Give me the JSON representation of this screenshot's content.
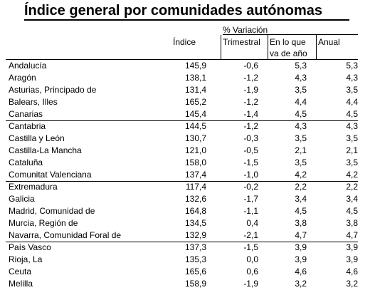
{
  "title": "Índice general por comunidades autónomas",
  "headers": {
    "indice": "Índice",
    "variacion": "% Variación",
    "trimestral": "Trimestral",
    "en_lo_que_1": "En lo que",
    "en_lo_que_2": "va de año",
    "anual": "Anual"
  },
  "rows": [
    {
      "name": "Andalucía",
      "indice": "145,9",
      "trimestral": "-0,6",
      "en_lo_que": "5,3",
      "anual": "5,3"
    },
    {
      "name": "Aragón",
      "indice": "138,1",
      "trimestral": "-1,2",
      "en_lo_que": "4,3",
      "anual": "4,3"
    },
    {
      "name": "Asturias, Principado de",
      "indice": "131,4",
      "trimestral": "-1,9",
      "en_lo_que": "3,5",
      "anual": "3,5"
    },
    {
      "name": "Balears, Illes",
      "indice": "165,2",
      "trimestral": "-1,2",
      "en_lo_que": "4,4",
      "anual": "4,4"
    },
    {
      "name": "Canarias",
      "indice": "145,4",
      "trimestral": "-1,4",
      "en_lo_que": "4,5",
      "anual": "4,5"
    },
    {
      "name": "Cantabria",
      "indice": "144,5",
      "trimestral": "-1,2",
      "en_lo_que": "4,3",
      "anual": "4,3"
    },
    {
      "name": "Castilla y León",
      "indice": "130,7",
      "trimestral": "-0,3",
      "en_lo_que": "3,5",
      "anual": "3,5"
    },
    {
      "name": "Castilla-La Mancha",
      "indice": "121,0",
      "trimestral": "-0,5",
      "en_lo_que": "2,1",
      "anual": "2,1"
    },
    {
      "name": "Cataluña",
      "indice": "158,0",
      "trimestral": "-1,5",
      "en_lo_que": "3,5",
      "anual": "3,5"
    },
    {
      "name": "Comunitat Valenciana",
      "indice": "137,4",
      "trimestral": "-1,0",
      "en_lo_que": "4,2",
      "anual": "4,2"
    },
    {
      "name": "Extremadura",
      "indice": "117,4",
      "trimestral": "-0,2",
      "en_lo_que": "2,2",
      "anual": "2,2"
    },
    {
      "name": "Galicia",
      "indice": "132,6",
      "trimestral": "-1,7",
      "en_lo_que": "3,4",
      "anual": "3,4"
    },
    {
      "name": "Madrid, Comunidad de",
      "indice": "164,8",
      "trimestral": "-1,1",
      "en_lo_que": "4,5",
      "anual": "4,5"
    },
    {
      "name": "Murcia, Región de",
      "indice": "134,5",
      "trimestral": "0,4",
      "en_lo_que": "3,8",
      "anual": "3,8"
    },
    {
      "name": "Navarra, Comunidad Foral de",
      "indice": "132,9",
      "trimestral": "-2,1",
      "en_lo_que": "4,7",
      "anual": "4,7"
    },
    {
      "name": "País Vasco",
      "indice": "137,3",
      "trimestral": "-1,5",
      "en_lo_que": "3,9",
      "anual": "3,9"
    },
    {
      "name": "Rioja, La",
      "indice": "135,3",
      "trimestral": "0,0",
      "en_lo_que": "3,9",
      "anual": "3,9"
    },
    {
      "name": "Ceuta",
      "indice": "165,6",
      "trimestral": "0,6",
      "en_lo_que": "4,6",
      "anual": "4,6"
    },
    {
      "name": "Melilla",
      "indice": "158,9",
      "trimestral": "-1,9",
      "en_lo_que": "3,2",
      "anual": "3,2"
    }
  ]
}
